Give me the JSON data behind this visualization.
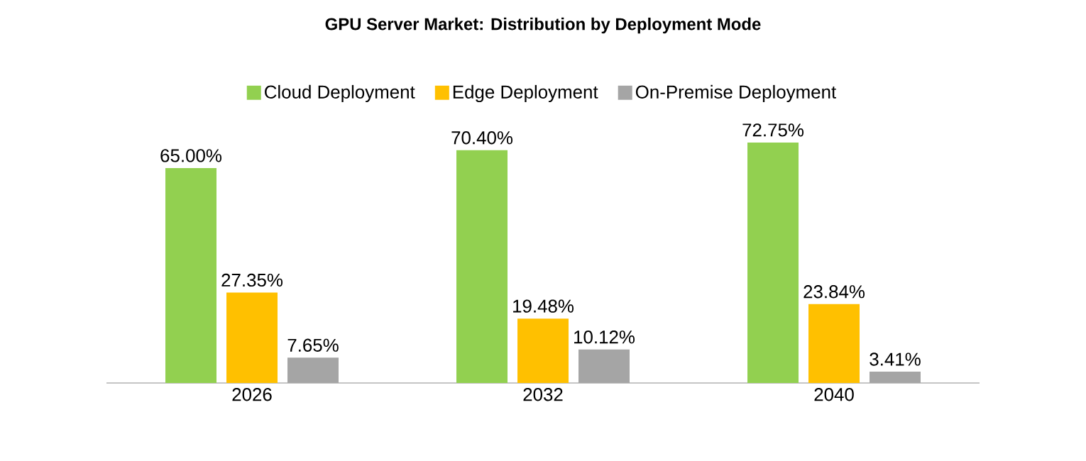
{
  "chart_data": {
    "type": "bar",
    "title": "GPU Server Market: Distribution by Deployment Mode",
    "categories": [
      "2026",
      "2032",
      "2040"
    ],
    "legend": "top",
    "series": [
      {
        "name": "Cloud Deployment",
        "color": "#92d050",
        "values": [
          65.0,
          70.4,
          72.75
        ],
        "value_labels": [
          "65.00%",
          "70.40%",
          "72.75%"
        ]
      },
      {
        "name": "Edge Deployment",
        "color": "#ffc000",
        "values": [
          27.35,
          19.48,
          23.84
        ],
        "value_labels": [
          "27.35%",
          "19.48%",
          "23.84%"
        ]
      },
      {
        "name": "On-Premise Deployment",
        "color": "#a5a5a5",
        "values": [
          7.65,
          10.12,
          3.41
        ],
        "value_labels": [
          "7.65%",
          "10.12%",
          "3.41%"
        ]
      }
    ]
  }
}
